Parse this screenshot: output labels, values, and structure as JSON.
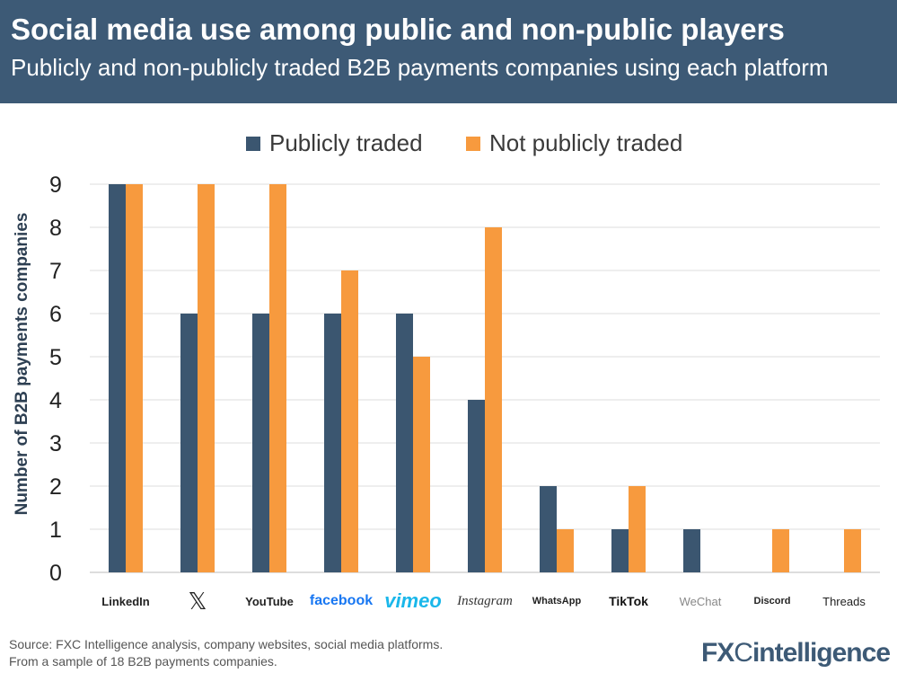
{
  "header": {
    "title": "Social media use among public and non-public players",
    "subtitle": "Publicly and non-publicly traded B2B payments companies using each platform"
  },
  "colors": {
    "header": "#3d5a76",
    "public": "#3b5670",
    "non_public": "#f79a3e"
  },
  "chart_data": {
    "type": "bar",
    "ylabel": "Number of B2B payments companies",
    "ylim": [
      0,
      9
    ],
    "yticks": [
      0,
      1,
      2,
      3,
      4,
      5,
      6,
      7,
      8,
      9
    ],
    "grid": true,
    "legend": "top",
    "categories": [
      "LinkedIn",
      "X",
      "YouTube",
      "facebook",
      "vimeo",
      "Instagram",
      "WhatsApp",
      "TikTok",
      "WeChat",
      "Discord",
      "Threads"
    ],
    "series": [
      {
        "name": "Publicly traded",
        "color": "#3b5670",
        "values": [
          9,
          6,
          6,
          6,
          6,
          4,
          2,
          1,
          1,
          0,
          0
        ]
      },
      {
        "name": "Not publicly traded",
        "color": "#f79a3e",
        "values": [
          9,
          9,
          9,
          7,
          5,
          8,
          1,
          2,
          0,
          1,
          1
        ]
      }
    ]
  },
  "footer": {
    "source": "Source: FXC Intelligence analysis, company websites, social media platforms.",
    "note": "From a sample of 18 B2B payments companies.",
    "logo": "FXCintelligence"
  }
}
